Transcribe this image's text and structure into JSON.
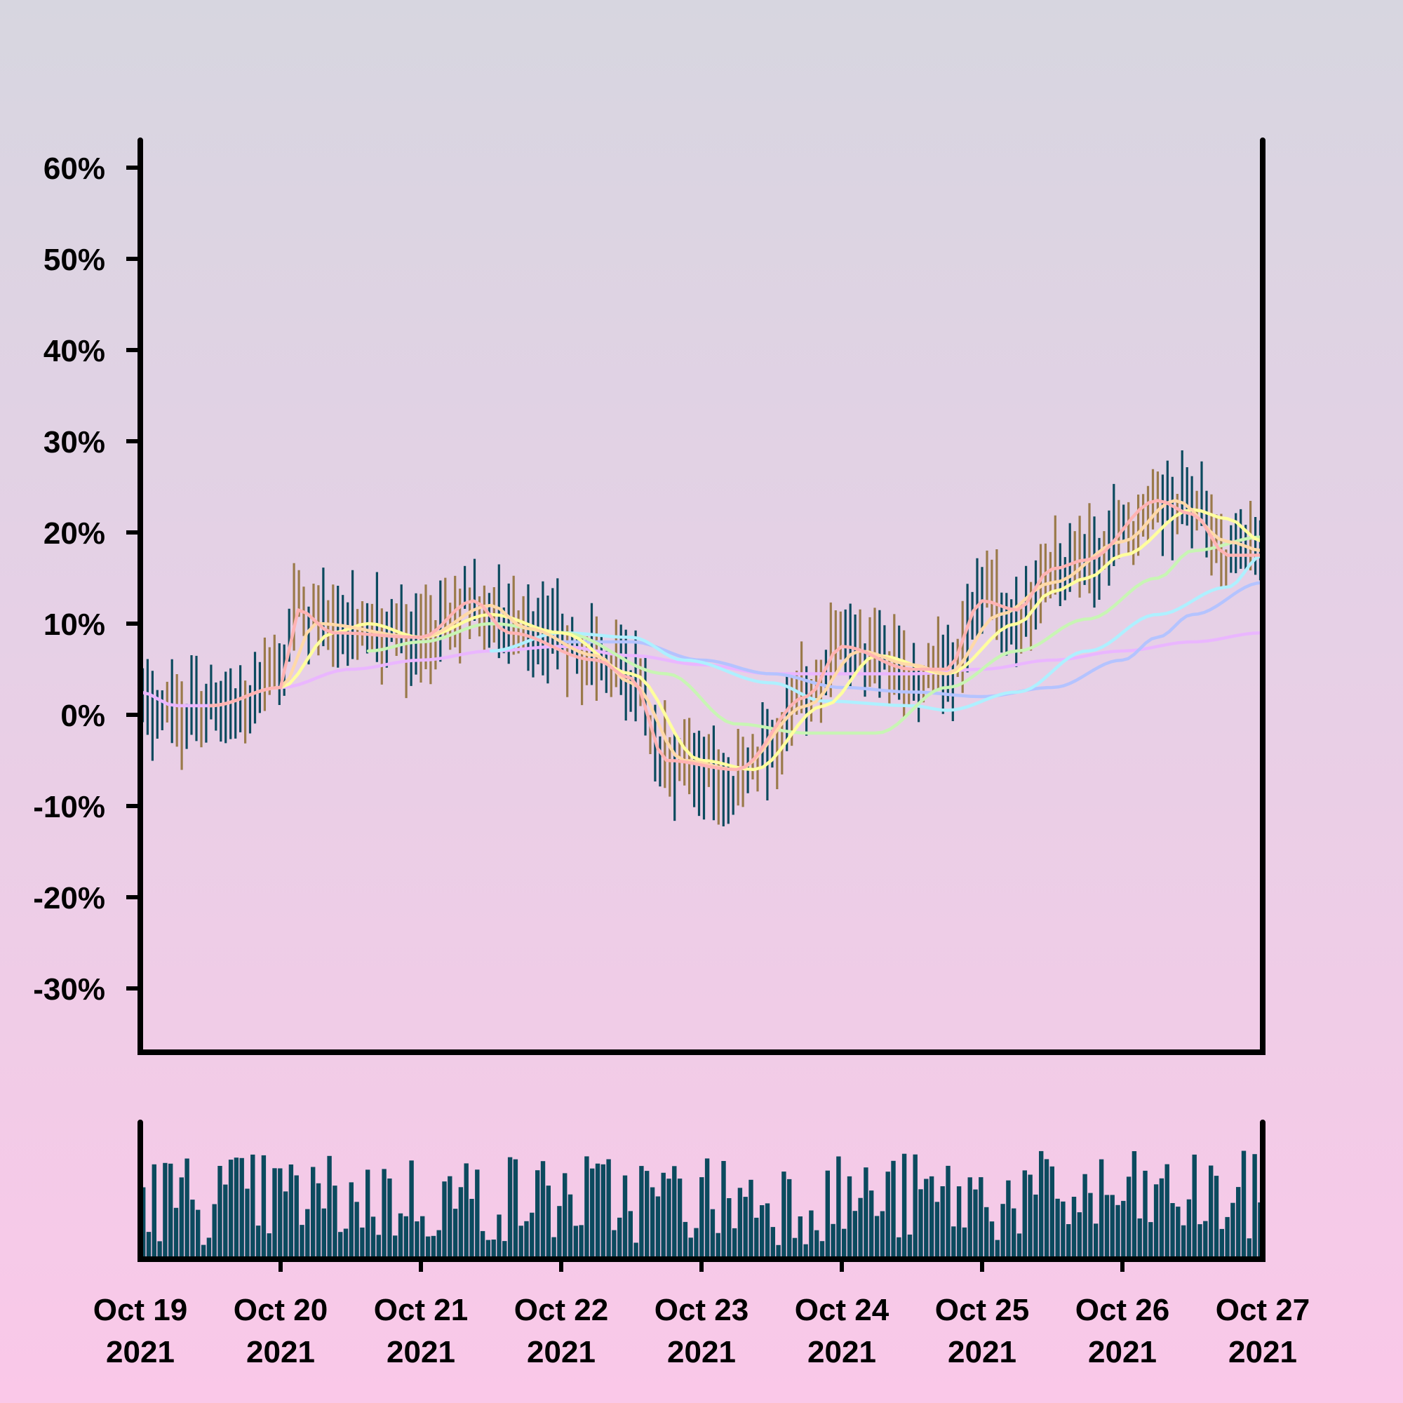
{
  "chart_data": {
    "type": "ohlc",
    "price_axis": {
      "ticks": [
        "60%",
        "50%",
        "40%",
        "30%",
        "20%",
        "10%",
        "0%",
        "-10%",
        "-20%",
        "-30%"
      ],
      "tick_values": [
        60,
        50,
        40,
        30,
        20,
        10,
        0,
        -10,
        -20,
        -30
      ],
      "ylim": [
        -37,
        63
      ]
    },
    "time_axis": {
      "ticks": [
        {
          "line1": "Oct 19",
          "line2": "2021",
          "date": "2021-10-19"
        },
        {
          "line1": "Oct 20",
          "line2": "2021",
          "date": "2021-10-20"
        },
        {
          "line1": "Oct 21",
          "line2": "2021",
          "date": "2021-10-21"
        },
        {
          "line1": "Oct 22",
          "line2": "2021",
          "date": "2021-10-22"
        },
        {
          "line1": "Oct 23",
          "line2": "2021",
          "date": "2021-10-23"
        },
        {
          "line1": "Oct 24",
          "line2": "2021",
          "date": "2021-10-24"
        },
        {
          "line1": "Oct 25",
          "line2": "2021",
          "date": "2021-10-25"
        },
        {
          "line1": "Oct 26",
          "line2": "2021",
          "date": "2021-10-26"
        },
        {
          "line1": "Oct 27",
          "line2": "2021",
          "date": "2021-10-27"
        }
      ],
      "xlim": [
        "2021-10-19",
        "2021-10-27"
      ]
    },
    "price_path": [
      [
        "2021-10-19 00:00",
        2
      ],
      [
        "2021-10-19 06:00",
        0.5
      ],
      [
        "2021-10-19 12:00",
        1
      ],
      [
        "2021-10-19 18:00",
        2
      ],
      [
        "2021-10-20 00:00",
        5
      ],
      [
        "2021-10-20 03:00",
        12
      ],
      [
        "2021-10-20 06:00",
        10
      ],
      [
        "2021-10-20 12:00",
        9.5
      ],
      [
        "2021-10-20 18:00",
        9
      ],
      [
        "2021-10-21 00:00",
        8.5
      ],
      [
        "2021-10-21 06:00",
        11
      ],
      [
        "2021-10-21 09:00",
        13
      ],
      [
        "2021-10-21 15:00",
        10
      ],
      [
        "2021-10-21 21:00",
        9
      ],
      [
        "2021-10-22 06:00",
        6
      ],
      [
        "2021-10-22 12:00",
        4
      ],
      [
        "2021-10-22 18:00",
        -5
      ],
      [
        "2021-10-23 00:00",
        -7
      ],
      [
        "2021-10-23 06:00",
        -7
      ],
      [
        "2021-10-23 12:00",
        -3
      ],
      [
        "2021-10-23 18:00",
        3
      ],
      [
        "2021-10-24 00:00",
        7
      ],
      [
        "2021-10-24 06:00",
        6
      ],
      [
        "2021-10-24 12:00",
        4
      ],
      [
        "2021-10-24 18:00",
        5
      ],
      [
        "2021-10-25 00:00",
        13
      ],
      [
        "2021-10-25 06:00",
        11
      ],
      [
        "2021-10-25 12:00",
        16
      ],
      [
        "2021-10-25 18:00",
        17
      ],
      [
        "2021-10-26 00:00",
        20
      ],
      [
        "2021-10-26 06:00",
        23
      ],
      [
        "2021-10-26 12:00",
        24
      ],
      [
        "2021-10-26 18:00",
        18
      ],
      [
        "2021-10-27 00:00",
        18
      ]
    ],
    "moving_averages": [
      {
        "color": "#ffb3b3",
        "points": [
          [
            "2021-10-19 12:00",
            1
          ],
          [
            "2021-10-20 00:00",
            3
          ],
          [
            "2021-10-20 03:00",
            11.5
          ],
          [
            "2021-10-20 09:00",
            9
          ],
          [
            "2021-10-21 00:00",
            8.5
          ],
          [
            "2021-10-21 09:00",
            12.5
          ],
          [
            "2021-10-21 15:00",
            9
          ],
          [
            "2021-10-22 06:00",
            6
          ],
          [
            "2021-10-22 12:00",
            4
          ],
          [
            "2021-10-22 18:00",
            -5
          ],
          [
            "2021-10-23 06:00",
            -6
          ],
          [
            "2021-10-23 18:00",
            2
          ],
          [
            "2021-10-24 00:00",
            7.5
          ],
          [
            "2021-10-24 12:00",
            5
          ],
          [
            "2021-10-24 18:00",
            5
          ],
          [
            "2021-10-25 00:00",
            12.5
          ],
          [
            "2021-10-25 06:00",
            11.5
          ],
          [
            "2021-10-25 12:00",
            16
          ],
          [
            "2021-10-25 18:00",
            17
          ],
          [
            "2021-10-26 06:00",
            23.5
          ],
          [
            "2021-10-26 12:00",
            22
          ],
          [
            "2021-10-26 18:00",
            17.5
          ],
          [
            "2021-10-27 00:00",
            17.5
          ]
        ]
      },
      {
        "color": "#ffd9a8",
        "points": [
          [
            "2021-10-19 12:00",
            1
          ],
          [
            "2021-10-20 00:00",
            3
          ],
          [
            "2021-10-20 06:00",
            10
          ],
          [
            "2021-10-21 00:00",
            8.5
          ],
          [
            "2021-10-21 12:00",
            12
          ],
          [
            "2021-10-21 18:00",
            9.5
          ],
          [
            "2021-10-22 06:00",
            6.5
          ],
          [
            "2021-10-22 12:00",
            3.5
          ],
          [
            "2021-10-22 21:00",
            -5
          ],
          [
            "2021-10-23 06:00",
            -6
          ],
          [
            "2021-10-23 18:00",
            1
          ],
          [
            "2021-10-24 03:00",
            7
          ],
          [
            "2021-10-24 12:00",
            5.5
          ],
          [
            "2021-10-24 18:00",
            4.5
          ],
          [
            "2021-10-25 03:00",
            11
          ],
          [
            "2021-10-25 12:00",
            14.5
          ],
          [
            "2021-10-26 00:00",
            19
          ],
          [
            "2021-10-26 09:00",
            23.5
          ],
          [
            "2021-10-26 18:00",
            19
          ],
          [
            "2021-10-27 00:00",
            18
          ]
        ]
      },
      {
        "color": "#ffff9e",
        "points": [
          [
            "2021-10-19 12:00",
            1
          ],
          [
            "2021-10-20 00:00",
            3
          ],
          [
            "2021-10-20 09:00",
            9
          ],
          [
            "2021-10-20 15:00",
            10
          ],
          [
            "2021-10-21 00:00",
            8.5
          ],
          [
            "2021-10-21 12:00",
            11
          ],
          [
            "2021-10-22 00:00",
            9
          ],
          [
            "2021-10-22 12:00",
            4.5
          ],
          [
            "2021-10-23 00:00",
            -5
          ],
          [
            "2021-10-23 09:00",
            -6
          ],
          [
            "2021-10-23 21:00",
            1
          ],
          [
            "2021-10-24 06:00",
            6.5
          ],
          [
            "2021-10-24 18:00",
            4.5
          ],
          [
            "2021-10-25 06:00",
            10
          ],
          [
            "2021-10-25 12:00",
            13.5
          ],
          [
            "2021-10-25 18:00",
            15
          ],
          [
            "2021-10-26 00:00",
            17.5
          ],
          [
            "2021-10-26 12:00",
            22.5
          ],
          [
            "2021-10-26 18:00",
            21.5
          ],
          [
            "2021-10-27 00:00",
            19
          ]
        ]
      },
      {
        "color": "#c8f5b4",
        "points": [
          [
            "2021-10-20 15:00",
            7
          ],
          [
            "2021-10-21 00:00",
            8
          ],
          [
            "2021-10-21 12:00",
            10
          ],
          [
            "2021-10-22 00:00",
            9
          ],
          [
            "2021-10-22 18:00",
            4.5
          ],
          [
            "2021-10-23 06:00",
            -1
          ],
          [
            "2021-10-23 18:00",
            -2
          ],
          [
            "2021-10-24 06:00",
            -2
          ],
          [
            "2021-10-24 18:00",
            3
          ],
          [
            "2021-10-25 06:00",
            7
          ],
          [
            "2021-10-25 18:00",
            10.5
          ],
          [
            "2021-10-26 06:00",
            15
          ],
          [
            "2021-10-26 12:00",
            18
          ],
          [
            "2021-10-27 00:00",
            19.5
          ]
        ]
      },
      {
        "color": "#aef0ff",
        "points": [
          [
            "2021-10-21 12:00",
            7
          ],
          [
            "2021-10-22 00:00",
            9
          ],
          [
            "2021-10-22 12:00",
            8.5
          ],
          [
            "2021-10-22 21:00",
            6
          ],
          [
            "2021-10-23 12:00",
            3.5
          ],
          [
            "2021-10-23 21:00",
            1.5
          ],
          [
            "2021-10-24 12:00",
            1
          ],
          [
            "2021-10-24 18:00",
            0.5
          ],
          [
            "2021-10-25 06:00",
            2.5
          ],
          [
            "2021-10-25 18:00",
            7
          ],
          [
            "2021-10-26 06:00",
            11
          ],
          [
            "2021-10-26 18:00",
            14
          ],
          [
            "2021-10-27 00:00",
            17.5
          ]
        ]
      },
      {
        "color": "#b4c3ff",
        "points": [
          [
            "2021-10-22 00:00",
            8
          ],
          [
            "2021-10-22 12:00",
            8
          ],
          [
            "2021-10-23 00:00",
            6
          ],
          [
            "2021-10-23 12:00",
            4.5
          ],
          [
            "2021-10-24 00:00",
            3
          ],
          [
            "2021-10-24 12:00",
            2.5
          ],
          [
            "2021-10-25 00:00",
            2
          ],
          [
            "2021-10-25 12:00",
            3
          ],
          [
            "2021-10-26 00:00",
            6
          ],
          [
            "2021-10-26 06:00",
            8.5
          ],
          [
            "2021-10-26 12:00",
            11
          ],
          [
            "2021-10-27 00:00",
            14.5
          ]
        ]
      },
      {
        "color": "#eab6ff",
        "points": [
          [
            "2021-10-19 00:00",
            2.5
          ],
          [
            "2021-10-19 06:00",
            1
          ],
          [
            "2021-10-19 12:00",
            1
          ],
          [
            "2021-10-20 00:00",
            3
          ],
          [
            "2021-10-20 12:00",
            5
          ],
          [
            "2021-10-21 00:00",
            6
          ],
          [
            "2021-10-21 12:00",
            7
          ],
          [
            "2021-10-22 00:00",
            7.5
          ],
          [
            "2021-10-22 12:00",
            6.5
          ],
          [
            "2021-10-23 00:00",
            5.5
          ],
          [
            "2021-10-23 12:00",
            4.5
          ],
          [
            "2021-10-24 00:00",
            4.5
          ],
          [
            "2021-10-24 12:00",
            4.5
          ],
          [
            "2021-10-25 00:00",
            5
          ],
          [
            "2021-10-25 12:00",
            6
          ],
          [
            "2021-10-26 00:00",
            7
          ],
          [
            "2021-10-26 12:00",
            8
          ],
          [
            "2021-10-27 00:00",
            9
          ]
        ]
      }
    ],
    "up_bar_color": "#0b4a5e",
    "down_bar_color": "#9a7a4a",
    "volume_bar_color": "#0b4a5e",
    "grid": false,
    "legend": "none"
  }
}
